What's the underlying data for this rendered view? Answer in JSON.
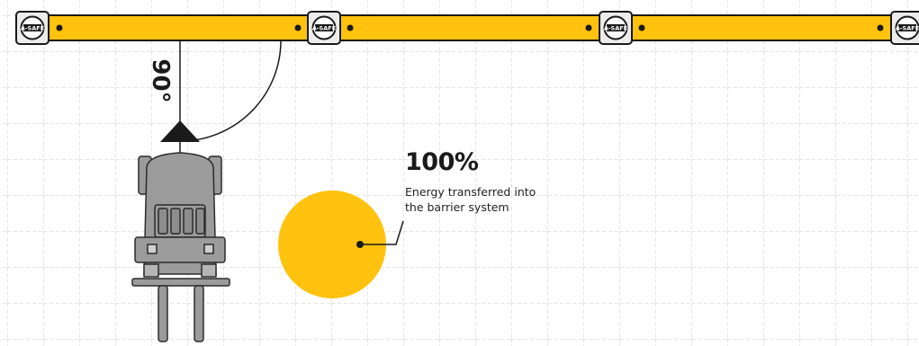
{
  "colors": {
    "barrier_yellow": "#FFC20E",
    "impact_yellow": "#FFC20E",
    "grid_line": "#c8c8c8",
    "vehicle_gray": "#9b9b9b",
    "outline": "#1a1a1a"
  },
  "angle": {
    "label": "90°"
  },
  "brand": {
    "post_logo": "A-SAFE"
  },
  "stat": {
    "value": "100%",
    "caption_line1": "Energy transferred into",
    "caption_line2": "the barrier system"
  },
  "icons": {
    "post": "barrier-post-icon",
    "forklift": "forklift-icon",
    "direction": "direction-arrow-icon"
  }
}
